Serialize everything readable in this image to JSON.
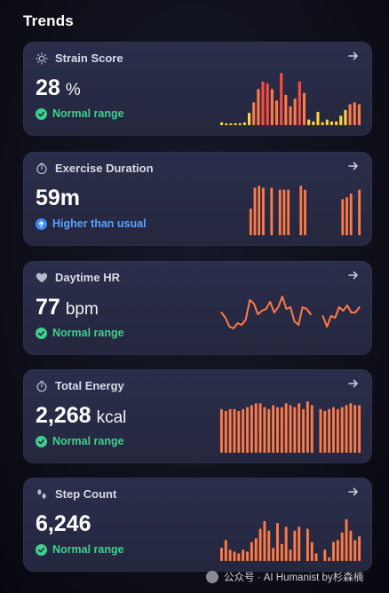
{
  "title": "Trends",
  "colors": {
    "green": "#3ecf8e",
    "blue": "#3b8cf5",
    "orange": "#ff7a45",
    "yellow": "#ffd23f",
    "red": "#ff4a3d"
  },
  "cards": [
    {
      "label": "Strain Score",
      "icon": "sun-icon",
      "value": "28",
      "unit": "%",
      "status": "Normal range",
      "status_type": "normal",
      "chart_type": "bar",
      "values": [
        3,
        2,
        2,
        2,
        2,
        3,
        13,
        24,
        38,
        46,
        44,
        38,
        26,
        55,
        32,
        20,
        28,
        46,
        34,
        6,
        4,
        14,
        3,
        6,
        4,
        4,
        10,
        16,
        22,
        24,
        22
      ]
    },
    {
      "label": "Exercise Duration",
      "icon": "timer-icon",
      "value": "59m",
      "unit": "",
      "status": "Higher than usual",
      "status_type": "high",
      "chart_type": "bar",
      "values": [
        0,
        0,
        0,
        0,
        0,
        0,
        0,
        28,
        50,
        52,
        50,
        0,
        50,
        0,
        48,
        48,
        48,
        0,
        0,
        52,
        48,
        0,
        0,
        0,
        0,
        0,
        0,
        0,
        0,
        38,
        40,
        44,
        0,
        48
      ]
    },
    {
      "label": "Daytime HR",
      "icon": "heart-icon",
      "value": "77",
      "unit": "bpm",
      "status": "Normal range",
      "status_type": "normal",
      "chart_type": "line",
      "values": [
        30,
        24,
        14,
        12,
        18,
        16,
        22,
        44,
        40,
        28,
        32,
        34,
        42,
        30,
        36,
        48,
        34,
        36,
        20,
        16,
        36,
        34,
        28,
        0,
        0,
        26,
        14,
        26,
        24,
        36,
        32,
        38,
        30,
        30,
        36
      ]
    },
    {
      "label": "Total Energy",
      "icon": "flame-icon",
      "value": "2,268",
      "unit": "kcal",
      "status": "Normal range",
      "status_type": "normal",
      "chart_type": "bar",
      "values": [
        46,
        44,
        46,
        46,
        44,
        46,
        48,
        50,
        52,
        52,
        48,
        46,
        50,
        48,
        48,
        52,
        50,
        48,
        52,
        46,
        54,
        50,
        0,
        46,
        44,
        46,
        48,
        46,
        48,
        50,
        52,
        50,
        50
      ]
    },
    {
      "label": "Step Count",
      "icon": "footsteps-icon",
      "value": "6,246",
      "unit": "",
      "status": "Normal range",
      "status_type": "normal",
      "chart_type": "bar",
      "values": [
        14,
        22,
        12,
        10,
        8,
        12,
        10,
        20,
        24,
        34,
        42,
        32,
        14,
        40,
        18,
        36,
        12,
        32,
        36,
        0,
        34,
        20,
        8,
        0,
        12,
        4,
        20,
        22,
        30,
        44,
        32,
        22,
        26
      ]
    }
  ],
  "watermark": "公众号 · AI Humanist by杉森楠"
}
